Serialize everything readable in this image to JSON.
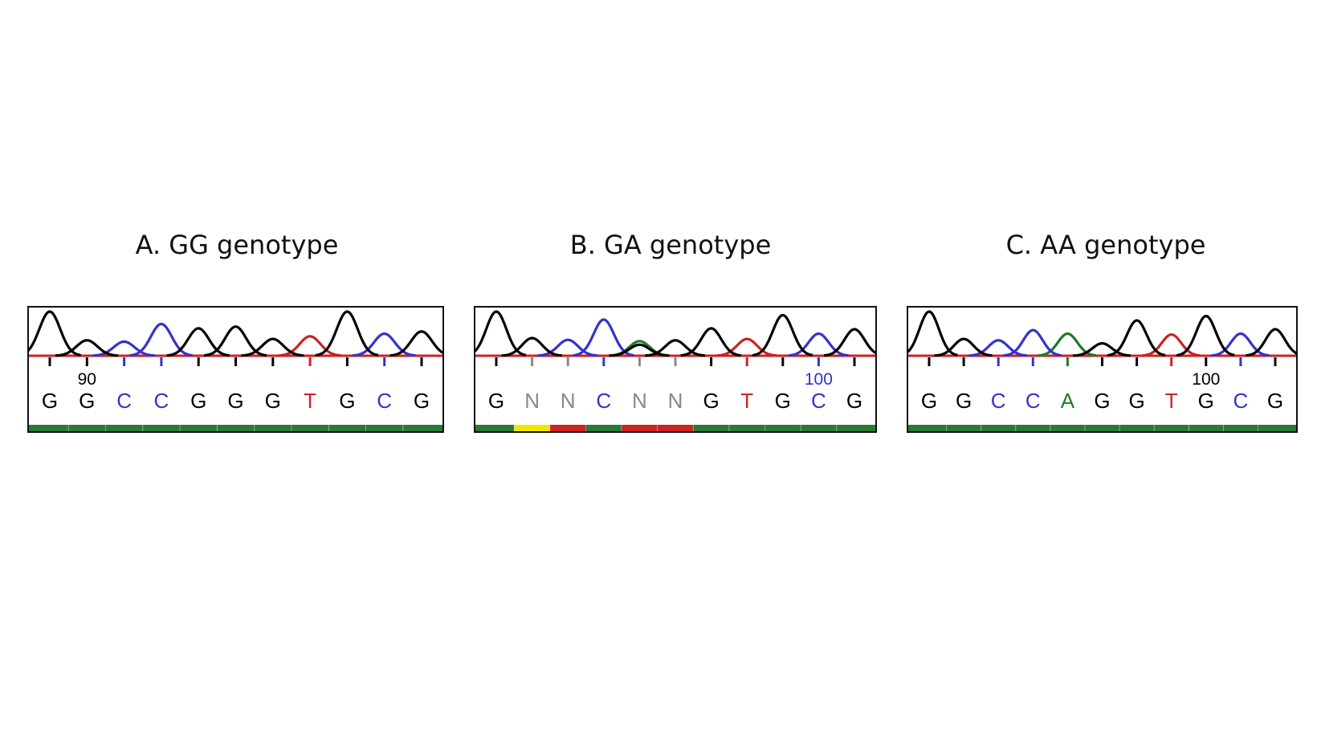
{
  "colors": {
    "G": "#000000",
    "C": "#3333cc",
    "T": "#cc2222",
    "A": "#1f7a2a",
    "N": "#888888",
    "q_good": "#2a7a35",
    "q_mid": "#f2e600",
    "q_bad": "#cc2222"
  },
  "panels": [
    {
      "title": "A. GG genotype",
      "bases": [
        "G",
        "G",
        "C",
        "C",
        "G",
        "G",
        "G",
        "T",
        "G",
        "C",
        "G"
      ],
      "position_label": "90",
      "position_label_index": 1,
      "position_label_color": "G",
      "quality": [
        "good",
        "good",
        "good",
        "good",
        "good",
        "good",
        "good",
        "good",
        "good",
        "good",
        "good"
      ],
      "peaks": [
        {
          "base": "G",
          "height": 1.0
        },
        {
          "base": "G",
          "height": 0.35
        },
        {
          "base": "C",
          "height": 0.32
        },
        {
          "base": "C",
          "height": 0.72
        },
        {
          "base": "G",
          "height": 0.62
        },
        {
          "base": "G",
          "height": 0.66
        },
        {
          "base": "G",
          "height": 0.38
        },
        {
          "base": "T",
          "height": 0.44
        },
        {
          "base": "G",
          "height": 1.0
        },
        {
          "base": "C",
          "height": 0.5
        },
        {
          "base": "G",
          "height": 0.55
        }
      ],
      "secondary_peaks": []
    },
    {
      "title": "B. GA genotype",
      "bases": [
        "G",
        "N",
        "N",
        "C",
        "N",
        "N",
        "G",
        "T",
        "G",
        "C",
        "G"
      ],
      "position_label": "100",
      "position_label_index": 9,
      "position_label_color": "C",
      "quality": [
        "good",
        "mid",
        "bad",
        "good",
        "bad",
        "bad",
        "good",
        "good",
        "good",
        "good",
        "good"
      ],
      "peaks": [
        {
          "base": "G",
          "height": 1.0
        },
        {
          "base": "G",
          "height": 0.4
        },
        {
          "base": "C",
          "height": 0.36
        },
        {
          "base": "C",
          "height": 0.82
        },
        {
          "base": "G",
          "height": 0.25
        },
        {
          "base": "G",
          "height": 0.35
        },
        {
          "base": "G",
          "height": 0.62
        },
        {
          "base": "T",
          "height": 0.38
        },
        {
          "base": "G",
          "height": 0.92
        },
        {
          "base": "C",
          "height": 0.5
        },
        {
          "base": "G",
          "height": 0.6
        }
      ],
      "secondary_peaks": [
        {
          "base": "A",
          "index": 4,
          "height": 0.33
        }
      ]
    },
    {
      "title": "C. AA genotype",
      "bases": [
        "G",
        "G",
        "C",
        "C",
        "A",
        "G",
        "G",
        "T",
        "G",
        "C",
        "G"
      ],
      "position_label": "100",
      "position_label_index": 8,
      "position_label_color": "G",
      "quality": [
        "good",
        "good",
        "good",
        "good",
        "good",
        "good",
        "good",
        "good",
        "good",
        "good",
        "good"
      ],
      "peaks": [
        {
          "base": "G",
          "height": 1.0
        },
        {
          "base": "G",
          "height": 0.38
        },
        {
          "base": "C",
          "height": 0.35
        },
        {
          "base": "C",
          "height": 0.58
        },
        {
          "base": "A",
          "height": 0.5
        },
        {
          "base": "G",
          "height": 0.28
        },
        {
          "base": "G",
          "height": 0.8
        },
        {
          "base": "T",
          "height": 0.48
        },
        {
          "base": "G",
          "height": 0.9
        },
        {
          "base": "C",
          "height": 0.5
        },
        {
          "base": "G",
          "height": 0.6
        }
      ],
      "secondary_peaks": []
    }
  ]
}
